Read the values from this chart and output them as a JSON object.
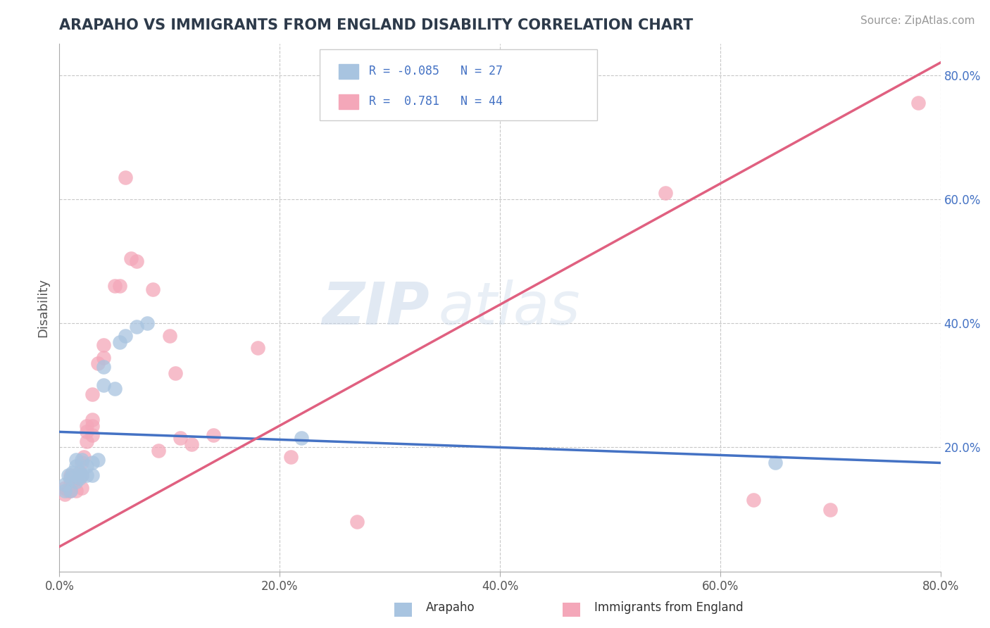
{
  "title": "ARAPAHO VS IMMIGRANTS FROM ENGLAND DISABILITY CORRELATION CHART",
  "source": "Source: ZipAtlas.com",
  "ylabel": "Disability",
  "xlim": [
    0.0,
    0.8
  ],
  "ylim": [
    0.0,
    0.85
  ],
  "arapaho_color": "#a8c4e0",
  "england_color": "#f4a7b9",
  "arapaho_line_color": "#4472c4",
  "england_line_color": "#e06080",
  "title_color": "#2d3a4a",
  "label_color": "#2d3a4a",
  "arapaho_line": [
    [
      0.0,
      0.225
    ],
    [
      0.8,
      0.175
    ]
  ],
  "england_line": [
    [
      0.0,
      0.04
    ],
    [
      0.8,
      0.82
    ]
  ],
  "arapaho_points": [
    [
      0.005,
      0.13
    ],
    [
      0.005,
      0.14
    ],
    [
      0.008,
      0.155
    ],
    [
      0.01,
      0.13
    ],
    [
      0.01,
      0.15
    ],
    [
      0.012,
      0.16
    ],
    [
      0.015,
      0.145
    ],
    [
      0.015,
      0.17
    ],
    [
      0.015,
      0.18
    ],
    [
      0.018,
      0.15
    ],
    [
      0.018,
      0.16
    ],
    [
      0.02,
      0.155
    ],
    [
      0.02,
      0.18
    ],
    [
      0.025,
      0.155
    ],
    [
      0.025,
      0.17
    ],
    [
      0.03,
      0.155
    ],
    [
      0.03,
      0.175
    ],
    [
      0.035,
      0.18
    ],
    [
      0.04,
      0.3
    ],
    [
      0.04,
      0.33
    ],
    [
      0.05,
      0.295
    ],
    [
      0.055,
      0.37
    ],
    [
      0.06,
      0.38
    ],
    [
      0.07,
      0.395
    ],
    [
      0.08,
      0.4
    ],
    [
      0.22,
      0.215
    ],
    [
      0.65,
      0.175
    ]
  ],
  "england_points": [
    [
      0.005,
      0.125
    ],
    [
      0.005,
      0.135
    ],
    [
      0.008,
      0.13
    ],
    [
      0.01,
      0.13
    ],
    [
      0.01,
      0.14
    ],
    [
      0.01,
      0.155
    ],
    [
      0.012,
      0.145
    ],
    [
      0.015,
      0.13
    ],
    [
      0.015,
      0.15
    ],
    [
      0.015,
      0.155
    ],
    [
      0.018,
      0.16
    ],
    [
      0.02,
      0.135
    ],
    [
      0.02,
      0.155
    ],
    [
      0.02,
      0.175
    ],
    [
      0.022,
      0.185
    ],
    [
      0.025,
      0.21
    ],
    [
      0.025,
      0.225
    ],
    [
      0.025,
      0.235
    ],
    [
      0.03,
      0.22
    ],
    [
      0.03,
      0.235
    ],
    [
      0.03,
      0.245
    ],
    [
      0.03,
      0.285
    ],
    [
      0.035,
      0.335
    ],
    [
      0.04,
      0.345
    ],
    [
      0.04,
      0.365
    ],
    [
      0.05,
      0.46
    ],
    [
      0.055,
      0.46
    ],
    [
      0.06,
      0.635
    ],
    [
      0.065,
      0.505
    ],
    [
      0.07,
      0.5
    ],
    [
      0.085,
      0.455
    ],
    [
      0.09,
      0.195
    ],
    [
      0.1,
      0.38
    ],
    [
      0.105,
      0.32
    ],
    [
      0.11,
      0.215
    ],
    [
      0.12,
      0.205
    ],
    [
      0.14,
      0.22
    ],
    [
      0.18,
      0.36
    ],
    [
      0.21,
      0.185
    ],
    [
      0.27,
      0.08
    ],
    [
      0.55,
      0.61
    ],
    [
      0.63,
      0.115
    ],
    [
      0.7,
      0.1
    ],
    [
      0.78,
      0.755
    ]
  ],
  "grid_yticks": [
    0.2,
    0.4,
    0.6,
    0.8
  ],
  "grid_xticks": [
    0.2,
    0.4,
    0.6,
    0.8
  ],
  "legend_text1": "R = -0.085   N = 27",
  "legend_text2": "R =  0.781   N = 44"
}
